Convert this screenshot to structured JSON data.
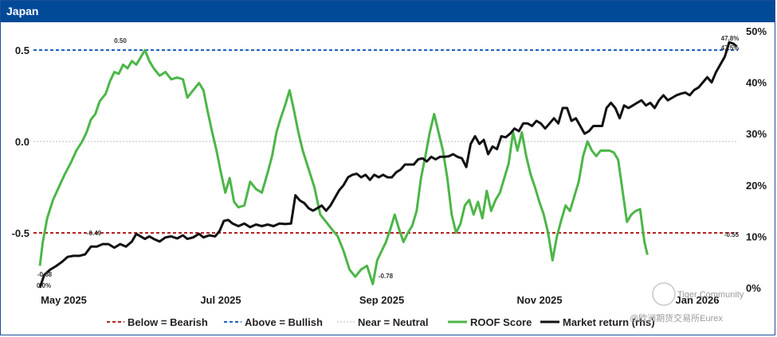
{
  "title": "Japan",
  "chart_data": {
    "type": "line",
    "title": "Japan",
    "x_ticks": [
      "May 2025",
      "Jul 2025",
      "Sep 2025",
      "Nov 2025",
      "Jan 2026"
    ],
    "y_left": {
      "ticks": [
        "0.5",
        "0.0",
        "-0.5"
      ],
      "range": [
        -0.8,
        0.57
      ]
    },
    "y_right": {
      "ticks": [
        "50%",
        "40%",
        "30%",
        "20%",
        "10%",
        "0%"
      ],
      "range": [
        0,
        50
      ]
    },
    "reference_lines": [
      {
        "name": "Below = Bearish",
        "value": -0.5,
        "color": "#b22222"
      },
      {
        "name": "Above = Bullish",
        "value": 0.5,
        "color": "#1f5fbf"
      },
      {
        "name": "Near = Neutral",
        "value": 0.0,
        "color": "#bbbbbb"
      }
    ],
    "series": [
      {
        "name": "ROOF Score",
        "axis": "left",
        "color": "#4cb648",
        "points": [
          [
            0,
            -0.68
          ],
          [
            2,
            -0.55
          ],
          [
            5,
            -0.42
          ],
          [
            9,
            -0.32
          ],
          [
            13,
            -0.25
          ],
          [
            17,
            -0.18
          ],
          [
            21,
            -0.12
          ],
          [
            25,
            -0.05
          ],
          [
            29,
            0.0
          ],
          [
            32,
            0.05
          ],
          [
            35,
            0.12
          ],
          [
            38,
            0.15
          ],
          [
            41,
            0.22
          ],
          [
            45,
            0.26
          ],
          [
            48,
            0.33
          ],
          [
            51,
            0.38
          ],
          [
            54,
            0.37
          ],
          [
            57,
            0.42
          ],
          [
            60,
            0.4
          ],
          [
            63,
            0.44
          ],
          [
            66,
            0.42
          ],
          [
            69,
            0.46
          ],
          [
            72,
            0.5
          ],
          [
            75,
            0.44
          ],
          [
            78,
            0.4
          ],
          [
            82,
            0.36
          ],
          [
            86,
            0.38
          ],
          [
            90,
            0.34
          ],
          [
            94,
            0.35
          ],
          [
            98,
            0.34
          ],
          [
            101,
            0.24
          ],
          [
            105,
            0.28
          ],
          [
            109,
            0.32
          ],
          [
            112,
            0.28
          ],
          [
            115,
            0.16
          ],
          [
            118,
            0.05
          ],
          [
            121,
            -0.05
          ],
          [
            124,
            -0.17
          ],
          [
            127,
            -0.28
          ],
          [
            130,
            -0.2
          ],
          [
            133,
            -0.33
          ],
          [
            136,
            -0.36
          ],
          [
            140,
            -0.35
          ],
          [
            144,
            -0.22
          ],
          [
            148,
            -0.26
          ],
          [
            152,
            -0.28
          ],
          [
            156,
            -0.17
          ],
          [
            159,
            -0.08
          ],
          [
            162,
            0.05
          ],
          [
            165,
            0.13
          ],
          [
            168,
            0.2
          ],
          [
            171,
            0.28
          ],
          [
            174,
            0.17
          ],
          [
            177,
            0.05
          ],
          [
            180,
            -0.05
          ],
          [
            184,
            -0.15
          ],
          [
            188,
            -0.25
          ],
          [
            192,
            -0.4
          ],
          [
            196,
            -0.44
          ],
          [
            200,
            -0.48
          ],
          [
            204,
            -0.52
          ],
          [
            208,
            -0.6
          ],
          [
            212,
            -0.7
          ],
          [
            216,
            -0.74
          ],
          [
            220,
            -0.7
          ],
          [
            224,
            -0.68
          ],
          [
            228,
            -0.78
          ],
          [
            231,
            -0.65
          ],
          [
            234,
            -0.6
          ],
          [
            237,
            -0.55
          ],
          [
            240,
            -0.48
          ],
          [
            243,
            -0.4
          ],
          [
            246,
            -0.48
          ],
          [
            249,
            -0.55
          ],
          [
            252,
            -0.5
          ],
          [
            255,
            -0.46
          ],
          [
            258,
            -0.38
          ],
          [
            261,
            -0.2
          ],
          [
            264,
            -0.08
          ],
          [
            267,
            0.05
          ],
          [
            270,
            0.15
          ],
          [
            273,
            0.05
          ],
          [
            276,
            -0.05
          ],
          [
            279,
            -0.2
          ],
          [
            282,
            -0.4
          ],
          [
            285,
            -0.5
          ],
          [
            288,
            -0.45
          ],
          [
            291,
            -0.35
          ],
          [
            294,
            -0.32
          ],
          [
            297,
            -0.4
          ],
          [
            300,
            -0.33
          ],
          [
            303,
            -0.42
          ],
          [
            306,
            -0.27
          ],
          [
            309,
            -0.38
          ],
          [
            312,
            -0.32
          ],
          [
            315,
            -0.28
          ],
          [
            318,
            -0.2
          ],
          [
            321,
            -0.12
          ],
          [
            324,
            0.05
          ],
          [
            327,
            -0.05
          ],
          [
            330,
            0.05
          ],
          [
            333,
            -0.08
          ],
          [
            336,
            -0.18
          ],
          [
            339,
            -0.25
          ],
          [
            342,
            -0.33
          ],
          [
            345,
            -0.4
          ],
          [
            348,
            -0.5
          ],
          [
            351,
            -0.65
          ],
          [
            354,
            -0.52
          ],
          [
            357,
            -0.43
          ],
          [
            360,
            -0.35
          ],
          [
            363,
            -0.38
          ],
          [
            366,
            -0.3
          ],
          [
            369,
            -0.22
          ],
          [
            372,
            -0.08
          ],
          [
            375,
            0.0
          ],
          [
            378,
            -0.05
          ],
          [
            381,
            -0.08
          ],
          [
            384,
            -0.05
          ],
          [
            387,
            -0.05
          ],
          [
            390,
            -0.05
          ],
          [
            393,
            -0.06
          ],
          [
            396,
            -0.1
          ],
          [
            399,
            -0.27
          ],
          [
            402,
            -0.44
          ],
          [
            405,
            -0.4
          ],
          [
            408,
            -0.38
          ],
          [
            411,
            -0.37
          ],
          [
            414,
            -0.55
          ],
          [
            416,
            -0.62
          ]
        ]
      },
      {
        "name": "Market return (rhs)",
        "axis": "right",
        "color": "#111111",
        "points": [
          [
            0,
            0.0
          ],
          [
            3,
            2.5
          ],
          [
            7,
            3.5
          ],
          [
            11,
            4.2
          ],
          [
            15,
            5.0
          ],
          [
            19,
            6.0
          ],
          [
            23,
            6.2
          ],
          [
            27,
            6.2
          ],
          [
            31,
            6.5
          ],
          [
            35,
            8.0
          ],
          [
            39,
            8.0
          ],
          [
            43,
            8.5
          ],
          [
            47,
            8.5
          ],
          [
            51,
            7.8
          ],
          [
            55,
            8.5
          ],
          [
            59,
            8.0
          ],
          [
            63,
            9.0
          ],
          [
            66,
            10.5
          ],
          [
            69,
            10.0
          ],
          [
            72,
            9.5
          ],
          [
            75,
            10.0
          ],
          [
            78,
            9.5
          ],
          [
            82,
            9.0
          ],
          [
            86,
            9.8
          ],
          [
            90,
            10.0
          ],
          [
            94,
            9.6
          ],
          [
            98,
            10.2
          ],
          [
            101,
            9.5
          ],
          [
            105,
            9.8
          ],
          [
            109,
            10.5
          ],
          [
            112,
            9.8
          ],
          [
            116,
            10.2
          ],
          [
            120,
            10.0
          ],
          [
            123,
            11.0
          ],
          [
            126,
            13.0
          ],
          [
            129,
            13.2
          ],
          [
            132,
            12.5
          ],
          [
            136,
            12.0
          ],
          [
            140,
            12.5
          ],
          [
            144,
            11.8
          ],
          [
            148,
            12.3
          ],
          [
            152,
            12.0
          ],
          [
            156,
            12.3
          ],
          [
            160,
            12.0
          ],
          [
            164,
            12.5
          ],
          [
            168,
            12.4
          ],
          [
            172,
            12.5
          ],
          [
            175,
            18.0
          ],
          [
            178,
            17.0
          ],
          [
            181,
            16.5
          ],
          [
            184,
            15.5
          ],
          [
            187,
            15.0
          ],
          [
            190,
            15.5
          ],
          [
            193,
            16.0
          ],
          [
            196,
            15.0
          ],
          [
            199,
            16.0
          ],
          [
            202,
            17.5
          ],
          [
            205,
            19.0
          ],
          [
            208,
            20.0
          ],
          [
            211,
            21.5
          ],
          [
            214,
            22.0
          ],
          [
            217,
            22.2
          ],
          [
            220,
            21.5
          ],
          [
            223,
            22.0
          ],
          [
            226,
            21.0
          ],
          [
            229,
            22.0
          ],
          [
            232,
            21.5
          ],
          [
            235,
            22.0
          ],
          [
            238,
            21.5
          ],
          [
            241,
            21.5
          ],
          [
            244,
            22.5
          ],
          [
            247,
            23.0
          ],
          [
            250,
            24.0
          ],
          [
            253,
            24.0
          ],
          [
            256,
            24.0
          ],
          [
            259,
            25.0
          ],
          [
            262,
            25.2
          ],
          [
            265,
            24.6
          ],
          [
            268,
            25.5
          ],
          [
            271,
            25.0
          ],
          [
            274,
            25.5
          ],
          [
            277,
            25.5
          ],
          [
            280,
            25.6
          ],
          [
            283,
            26.0
          ],
          [
            286,
            25.5
          ],
          [
            289,
            25.2
          ],
          [
            292,
            23.5
          ],
          [
            295,
            28.0
          ],
          [
            298,
            29.5
          ],
          [
            301,
            28.0
          ],
          [
            304,
            28.8
          ],
          [
            307,
            26.0
          ],
          [
            310,
            27.5
          ],
          [
            313,
            27.0
          ],
          [
            316,
            29.5
          ],
          [
            319,
            29.3
          ],
          [
            322,
            30.0
          ],
          [
            325,
            31.0
          ],
          [
            328,
            30.5
          ],
          [
            331,
            32.0
          ],
          [
            334,
            32.0
          ],
          [
            337,
            31.5
          ],
          [
            340,
            32.5
          ],
          [
            343,
            32.0
          ],
          [
            346,
            31.0
          ],
          [
            349,
            32.0
          ],
          [
            352,
            33.0
          ],
          [
            355,
            32.0
          ],
          [
            358,
            35.0
          ],
          [
            361,
            35.0
          ],
          [
            364,
            32.5
          ],
          [
            367,
            33.0
          ],
          [
            370,
            31.5
          ],
          [
            373,
            30.0
          ],
          [
            376,
            30.5
          ],
          [
            379,
            31.5
          ],
          [
            382,
            31.5
          ],
          [
            385,
            31.5
          ],
          [
            388,
            35.0
          ],
          [
            391,
            36.0
          ],
          [
            394,
            35.0
          ],
          [
            397,
            33.0
          ],
          [
            400,
            35.5
          ],
          [
            403,
            35.0
          ],
          [
            406,
            35.5
          ],
          [
            409,
            36.0
          ],
          [
            412,
            36.5
          ],
          [
            415,
            35.5
          ],
          [
            418,
            36.0
          ],
          [
            421,
            35.0
          ],
          [
            424,
            36.5
          ],
          [
            427,
            37.5
          ],
          [
            430,
            36.5
          ],
          [
            433,
            37.0
          ],
          [
            436,
            37.5
          ],
          [
            439,
            37.8
          ],
          [
            442,
            38.0
          ],
          [
            445,
            37.5
          ],
          [
            448,
            38.5
          ],
          [
            451,
            39.0
          ],
          [
            454,
            40.0
          ],
          [
            457,
            41.0
          ],
          [
            460,
            40.0
          ],
          [
            463,
            42.0
          ],
          [
            466,
            43.5
          ],
          [
            469,
            45.0
          ],
          [
            472,
            47.8
          ],
          [
            475,
            47.5
          ],
          [
            477,
            47.0
          ]
        ]
      }
    ],
    "annotations": [
      "0.50",
      "-0.49",
      "-0.68",
      "0.0%",
      "-0.78",
      "47.8%",
      "47.5%",
      "-0.55"
    ],
    "legend": [
      "Below = Bearish",
      "Above = Bullish",
      "Near = Neutral",
      "ROOF Score",
      "Market return (rhs)"
    ]
  },
  "watermark": {
    "line1": "Tiger Community",
    "line2": "@欧洲期货交易所Eurex"
  }
}
